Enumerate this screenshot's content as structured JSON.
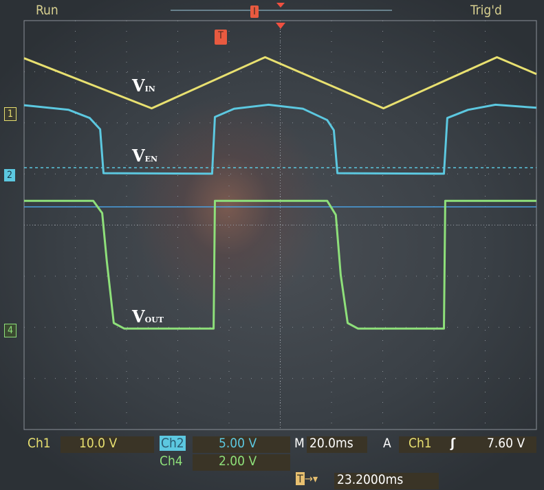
{
  "header": {
    "status": "Run",
    "trigger_state": "Trig'd",
    "trigger_marker": "T"
  },
  "channels": {
    "ch1": {
      "label": "Ch1",
      "scale": "10.0 V",
      "marker": "1",
      "color": "#e8e070"
    },
    "ch2": {
      "label": "Ch2",
      "scale": "5.00 V",
      "marker": "2",
      "color": "#5cc8e0"
    },
    "ch4": {
      "label": "Ch4",
      "scale": "2.00 V",
      "marker": "4",
      "color": "#8ee07a"
    }
  },
  "timebase": {
    "label": "M",
    "scale": "20.0ms"
  },
  "trigger": {
    "label": "A",
    "source": "Ch1",
    "slope_icon": "rising-edge-icon",
    "level": "7.60 V"
  },
  "trigger_offset": {
    "icon": "trigger-arrow-icon",
    "value": "23.2000ms"
  },
  "chart_data": {
    "type": "line",
    "x_unit": "ms",
    "xlim": [
      -100,
      100
    ],
    "x_divisions": 10,
    "y_divisions": 8,
    "grid": true,
    "annotations": [
      {
        "main": "V",
        "sub": "IN",
        "series": "ch1"
      },
      {
        "main": "V",
        "sub": "EN",
        "series": "ch2"
      },
      {
        "main": "V",
        "sub": "OUT",
        "series": "ch4"
      }
    ],
    "series": [
      {
        "channel": "ch1",
        "volts_per_div": 10,
        "points": [
          [
            -100,
            10.8
          ],
          [
            -50.2,
            1.0
          ],
          [
            -5.9,
            11.0
          ],
          [
            40.3,
            1.0
          ],
          [
            84.6,
            11.0
          ],
          [
            100,
            7.7
          ]
        ]
      },
      {
        "channel": "ch2",
        "volts_per_div": 5,
        "points": [
          [
            -100,
            6.85
          ],
          [
            -82.6,
            6.4
          ],
          [
            -74.4,
            5.6
          ],
          [
            -70.3,
            4.5
          ],
          [
            -69,
            0.2
          ],
          [
            -26.6,
            0.15
          ],
          [
            -25.5,
            5.7
          ],
          [
            -18,
            6.5
          ],
          [
            -4.6,
            6.9
          ],
          [
            8.9,
            6.5
          ],
          [
            18.3,
            5.4
          ],
          [
            20.9,
            4.4
          ],
          [
            22.3,
            0.2
          ],
          [
            63.9,
            0.15
          ],
          [
            65.2,
            5.6
          ],
          [
            73.3,
            6.4
          ],
          [
            84,
            6.9
          ],
          [
            100,
            6.6
          ]
        ]
      },
      {
        "channel": "ch4",
        "volts_per_div": 2,
        "points": [
          [
            -100,
            5.05
          ],
          [
            -73,
            5.05
          ],
          [
            -69.5,
            4.57
          ],
          [
            -67.7,
            2.69
          ],
          [
            -65,
            0.27
          ],
          [
            -60.9,
            0.05
          ],
          [
            -26,
            0.05
          ],
          [
            -25.5,
            5.05
          ],
          [
            18.3,
            5.05
          ],
          [
            21.7,
            4.5
          ],
          [
            23.6,
            2.15
          ],
          [
            26.3,
            0.27
          ],
          [
            30.3,
            0.05
          ],
          [
            63.9,
            0.05
          ],
          [
            64.4,
            5.05
          ],
          [
            100,
            5.05
          ]
        ]
      }
    ]
  }
}
